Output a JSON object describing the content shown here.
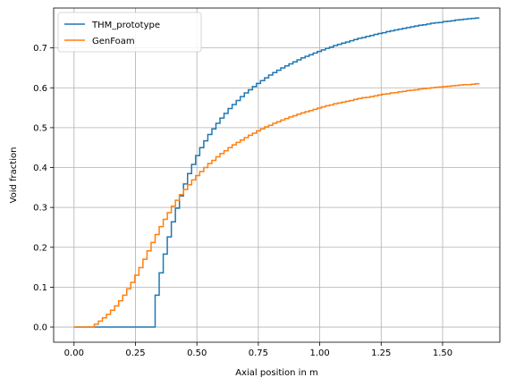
{
  "chart_data": {
    "type": "line",
    "step": true,
    "xlabel": "Axial position in m",
    "ylabel": "Void fraction",
    "xlim": [
      -0.083,
      1.733
    ],
    "ylim": [
      -0.038,
      0.8
    ],
    "xticks": [
      0.0,
      0.25,
      0.5,
      0.75,
      1.0,
      1.25,
      1.5
    ],
    "xtick_labels": [
      "0.00",
      "0.25",
      "0.50",
      "0.75",
      "1.00",
      "1.25",
      "1.50"
    ],
    "yticks": [
      0.0,
      0.1,
      0.2,
      0.3,
      0.4,
      0.5,
      0.6,
      0.7
    ],
    "ytick_labels": [
      "0.0",
      "0.1",
      "0.2",
      "0.3",
      "0.4",
      "0.5",
      "0.6",
      "0.7"
    ],
    "grid": true,
    "legend_position": "top-left",
    "x_start": 0.0,
    "x_step": 0.0165,
    "series": [
      {
        "name": "THM_prototype",
        "color": "#1f77b4",
        "values": [
          0,
          0,
          0,
          0,
          0,
          0,
          0,
          0,
          0,
          0,
          0,
          0,
          0,
          0,
          0,
          0,
          0,
          0,
          0,
          0,
          0.08,
          0.136,
          0.183,
          0.226,
          0.264,
          0.298,
          0.329,
          0.359,
          0.385,
          0.408,
          0.43,
          0.45,
          0.467,
          0.483,
          0.497,
          0.511,
          0.524,
          0.536,
          0.548,
          0.558,
          0.568,
          0.578,
          0.587,
          0.595,
          0.603,
          0.611,
          0.618,
          0.625,
          0.632,
          0.638,
          0.644,
          0.65,
          0.655,
          0.66,
          0.665,
          0.67,
          0.675,
          0.679,
          0.683,
          0.687,
          0.691,
          0.695,
          0.699,
          0.702,
          0.706,
          0.709,
          0.712,
          0.715,
          0.718,
          0.721,
          0.724,
          0.726,
          0.729,
          0.731,
          0.734,
          0.736,
          0.738,
          0.741,
          0.743,
          0.745,
          0.747,
          0.749,
          0.751,
          0.753,
          0.755,
          0.757,
          0.758,
          0.76,
          0.762,
          0.763,
          0.764,
          0.766,
          0.767,
          0.768,
          0.77,
          0.771,
          0.772,
          0.773,
          0.774,
          0.775
        ]
      },
      {
        "name": "GenFoam",
        "color": "#ff7f0e",
        "values": [
          0,
          0,
          0,
          0,
          0,
          0.007,
          0.015,
          0.023,
          0.032,
          0.042,
          0.053,
          0.066,
          0.08,
          0.096,
          0.112,
          0.13,
          0.149,
          0.17,
          0.191,
          0.212,
          0.232,
          0.252,
          0.27,
          0.287,
          0.303,
          0.318,
          0.332,
          0.345,
          0.357,
          0.369,
          0.38,
          0.39,
          0.4,
          0.41,
          0.418,
          0.427,
          0.435,
          0.442,
          0.45,
          0.457,
          0.463,
          0.469,
          0.475,
          0.481,
          0.486,
          0.492,
          0.497,
          0.502,
          0.506,
          0.511,
          0.515,
          0.519,
          0.523,
          0.527,
          0.53,
          0.534,
          0.537,
          0.54,
          0.543,
          0.546,
          0.549,
          0.552,
          0.555,
          0.557,
          0.56,
          0.562,
          0.564,
          0.566,
          0.568,
          0.571,
          0.573,
          0.575,
          0.576,
          0.578,
          0.58,
          0.582,
          0.584,
          0.585,
          0.587,
          0.588,
          0.59,
          0.591,
          0.593,
          0.594,
          0.595,
          0.597,
          0.598,
          0.599,
          0.6,
          0.601,
          0.602,
          0.603,
          0.604,
          0.605,
          0.606,
          0.607,
          0.608,
          0.608,
          0.609,
          0.61
        ]
      }
    ]
  }
}
